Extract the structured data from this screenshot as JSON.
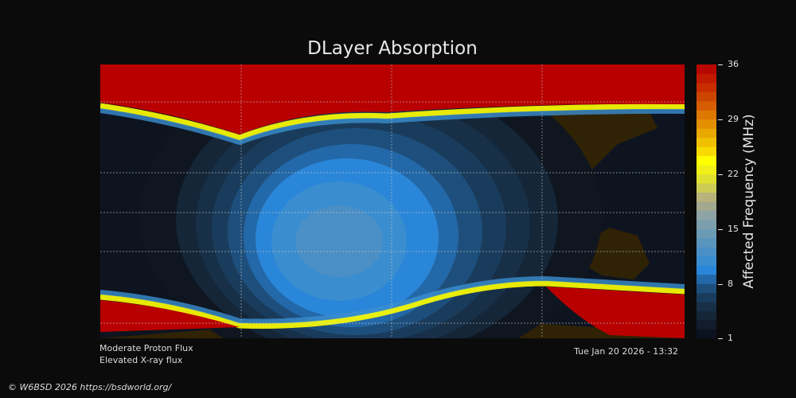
{
  "title": "DLayer Absorption",
  "colorbar": {
    "label": "Affected Frequency (MHz)",
    "ticks": [
      "36",
      "29",
      "22",
      "15",
      "8",
      "1"
    ],
    "range": [
      1,
      36
    ],
    "colors_low_to_high": [
      "#0d1220",
      "#111c2c",
      "#142638",
      "#173048",
      "#1a3c5c",
      "#1e4f7c",
      "#2368a8",
      "#2a86d8",
      "#3a8ed0",
      "#4a8fc6",
      "#5a95bd",
      "#6b9bb4",
      "#7c9fad",
      "#8ea3a6",
      "#a3a98f",
      "#b8b37a",
      "#cccc55",
      "#e0e030",
      "#f0f018",
      "#ffff00",
      "#f8da00",
      "#f0c000",
      "#e8a800",
      "#e39000",
      "#dd7800",
      "#d65e00",
      "#cd4600",
      "#c82e00",
      "#c01a00",
      "#b80600"
    ]
  },
  "map_colors": {
    "background": "#0d1420",
    "land": "#302205",
    "polar_absorption": "#b80000"
  },
  "notes": [
    "Moderate Proton Flux",
    "Elevated X-ray flux"
  ],
  "timestamp": "Tue Jan 20 2026 - 13:32",
  "copyright": "© W6BSD 2026 https://bsdworld.org/"
}
